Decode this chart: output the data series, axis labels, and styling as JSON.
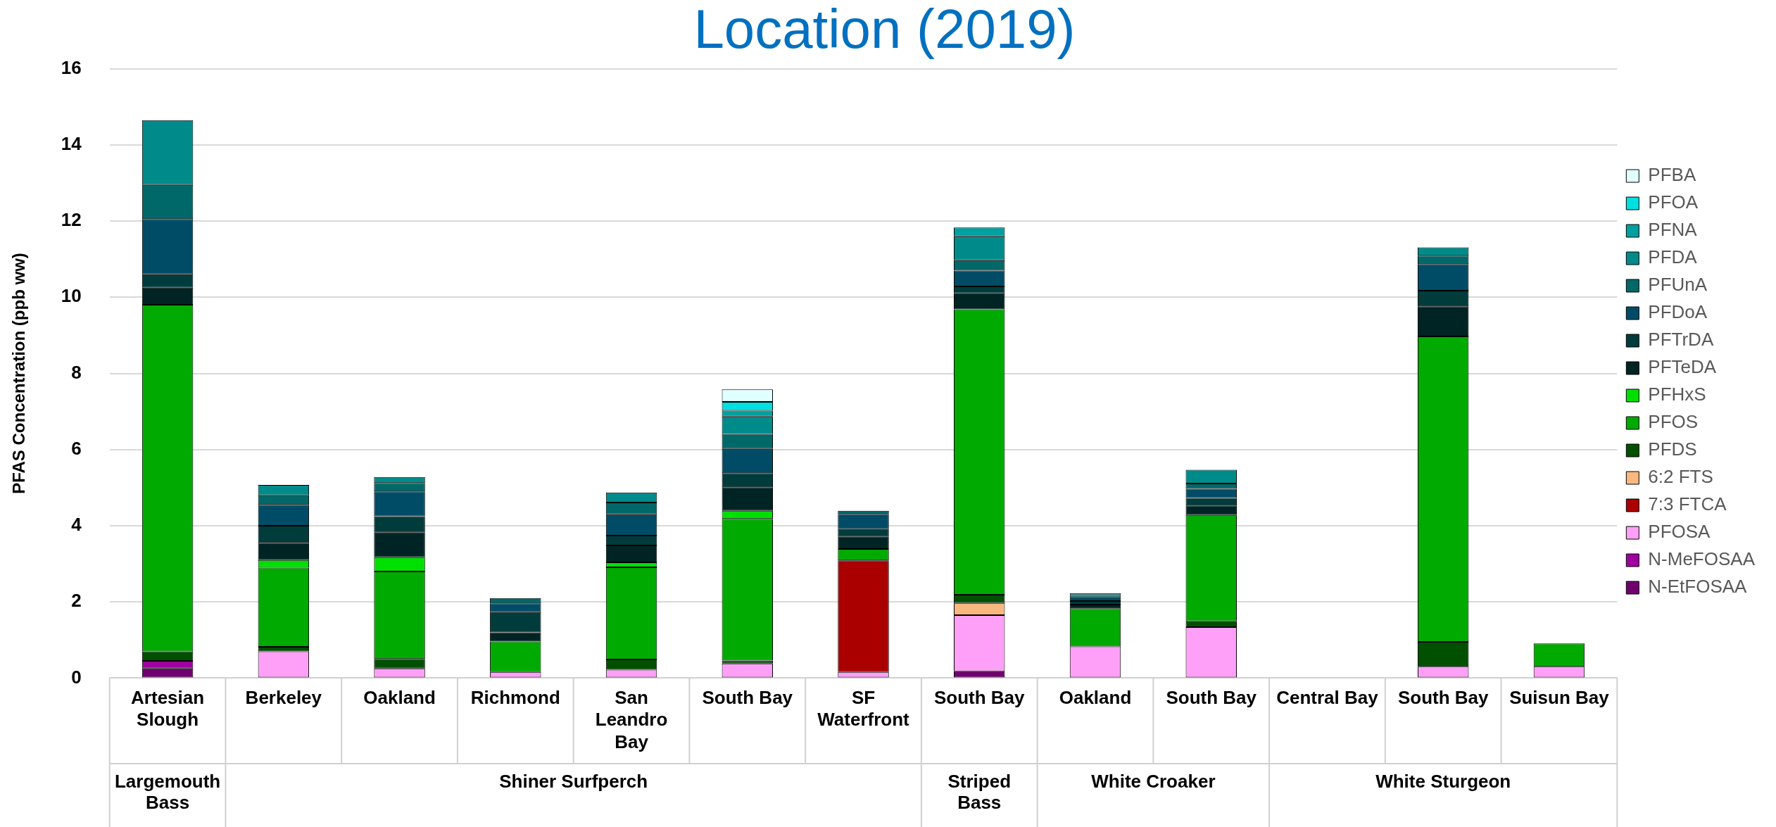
{
  "chart_data": {
    "type": "bar",
    "title": "Location (2019)",
    "ylabel": "PFAS Concentration (ppb ww)",
    "categories": [
      "Artesian Slough",
      "Berkeley",
      "Oakland",
      "Richmond",
      "San Leandro Bay",
      "South Bay",
      "SF Waterfront",
      "South Bay",
      "Oakland",
      "South Bay",
      "Central Bay",
      "South Bay",
      "Suisun Bay"
    ],
    "annotations": [
      "Largemouth Bass",
      "Shiner Surfperch",
      "Striped Bass",
      "White Croaker",
      "White Sturgeon"
    ],
    "stacked": true,
    "ylim": [
      0,
      16
    ],
    "yticks": [
      0,
      2,
      4,
      6,
      8,
      10,
      12,
      14,
      16
    ],
    "grid": "y",
    "legend": "right",
    "series": [
      {
        "name": "N-EtFOSAA",
        "color": "#700070",
        "values": [
          0.25,
          null,
          null,
          null,
          null,
          null,
          null,
          0.18,
          null,
          null,
          null,
          null,
          null
        ]
      },
      {
        "name": "N-MeFOSAA",
        "color": "#a000a0",
        "values": [
          0.2,
          null,
          null,
          null,
          null,
          null,
          null,
          null,
          null,
          null,
          null,
          null,
          null
        ]
      },
      {
        "name": "PFOSA",
        "color": "#ffa0f8",
        "values": [
          null,
          0.7,
          0.25,
          0.16,
          0.22,
          0.38,
          0.16,
          1.47,
          0.83,
          1.34,
          null,
          0.3,
          0.3
        ]
      },
      {
        "name": "7:3 FTCA",
        "color": "#aa0000",
        "values": [
          null,
          null,
          null,
          null,
          null,
          null,
          2.93,
          null,
          null,
          null,
          null,
          null,
          null
        ]
      },
      {
        "name": "6:2 FTS",
        "color": "#f8b880",
        "values": [
          null,
          null,
          null,
          null,
          null,
          null,
          null,
          0.32,
          null,
          null,
          null,
          null,
          null
        ]
      },
      {
        "name": "PFDS",
        "color": "#005000",
        "values": [
          0.25,
          0.12,
          0.25,
          null,
          0.27,
          0.08,
          null,
          0.22,
          null,
          0.15,
          null,
          0.65,
          null
        ]
      },
      {
        "name": "PFOS",
        "color": "#00aa00",
        "values": [
          9.1,
          2.08,
          2.3,
          0.8,
          2.42,
          3.72,
          0.3,
          7.49,
          1.0,
          2.79,
          null,
          8.02,
          0.61
        ]
      },
      {
        "name": "PFHxS",
        "color": "#00e000",
        "values": [
          null,
          0.2,
          0.37,
          null,
          0.13,
          0.21,
          null,
          null,
          null,
          null,
          null,
          null,
          null
        ]
      },
      {
        "name": "PFTeDA",
        "color": "#002424",
        "values": [
          0.45,
          0.45,
          0.65,
          0.24,
          0.44,
          0.62,
          0.32,
          0.42,
          0.1,
          0.25,
          null,
          0.79,
          null
        ]
      },
      {
        "name": "PFTrDA",
        "color": "#003c3c",
        "values": [
          0.35,
          0.45,
          0.43,
          0.53,
          0.26,
          0.37,
          0.2,
          0.18,
          0.09,
          0.2,
          null,
          0.41,
          null
        ]
      },
      {
        "name": "PFDoA",
        "color": "#004c66",
        "values": [
          1.45,
          0.55,
          0.65,
          0.23,
          0.56,
          0.64,
          0.4,
          0.42,
          0.1,
          0.24,
          null,
          0.7,
          null
        ]
      },
      {
        "name": "PFUnA",
        "color": "#006868",
        "values": [
          0.9,
          0.25,
          0.22,
          0.14,
          0.31,
          0.39,
          0.08,
          0.27,
          0.06,
          0.14,
          null,
          0.22,
          null
        ]
      },
      {
        "name": "PFDA",
        "color": "#008b8b",
        "values": [
          1.7,
          0.27,
          0.16,
          null,
          0.26,
          0.46,
          null,
          0.63,
          0.05,
          0.36,
          null,
          0.22,
          null
        ]
      },
      {
        "name": "PFNA",
        "color": "#00a0a0",
        "values": [
          null,
          null,
          null,
          null,
          null,
          0.15,
          null,
          0.23,
          null,
          null,
          null,
          null,
          null
        ]
      },
      {
        "name": "PFOA",
        "color": "#00e0e0",
        "values": [
          null,
          null,
          null,
          null,
          null,
          0.23,
          null,
          null,
          null,
          null,
          null,
          null,
          null
        ]
      },
      {
        "name": "PFBA",
        "color": "#e0ffff",
        "values": [
          null,
          null,
          null,
          null,
          null,
          0.33,
          null,
          null,
          null,
          null,
          null,
          null,
          null
        ]
      }
    ]
  }
}
